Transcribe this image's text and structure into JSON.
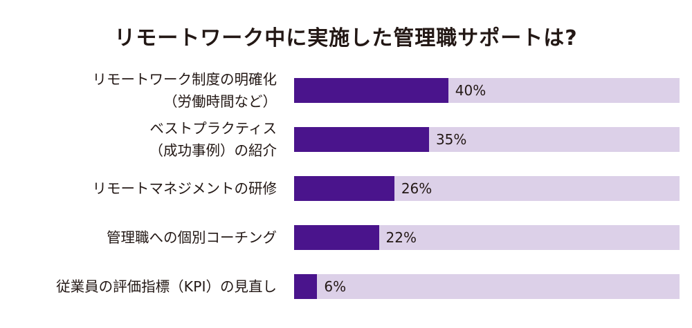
{
  "chart_data": {
    "type": "bar",
    "orientation": "horizontal",
    "title": "リモートワーク中に実施した管理職サポートは?",
    "categories": [
      [
        "リモートワーク制度の明確化",
        "（労働時間など）"
      ],
      [
        "ベストプラクティス",
        "（成功事例）の紹介"
      ],
      [
        "リモートマネジメントの研修"
      ],
      [
        "管理職への個別コーチング"
      ],
      [
        "従業員の評価指標（KPI）の見直し"
      ]
    ],
    "values": [
      40,
      35,
      26,
      22,
      6
    ],
    "value_labels": [
      "40%",
      "35%",
      "26%",
      "22%",
      "6%"
    ],
    "xlim": [
      0,
      100
    ],
    "colors": {
      "bar": "#4a148c",
      "track": "#dcd0e8"
    },
    "grid": false,
    "legend": "none"
  }
}
